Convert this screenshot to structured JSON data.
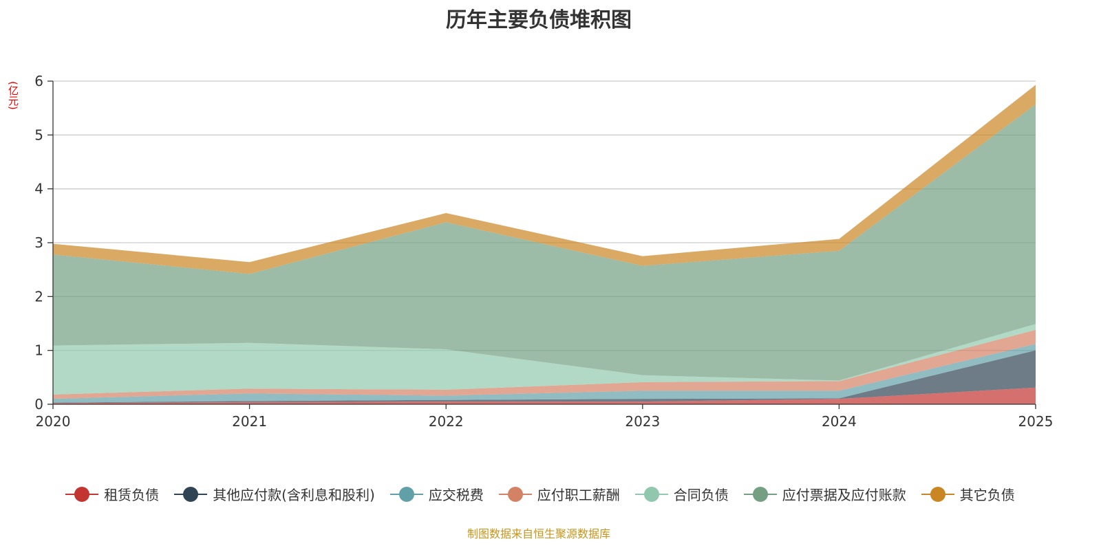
{
  "chart_data": {
    "type": "area",
    "stacked": true,
    "title": "历年主要负债堆积图",
    "ylabel": "(亿元)",
    "xlabel": "",
    "categories": [
      "2020",
      "2021",
      "2022",
      "2023",
      "2024",
      "2025"
    ],
    "ylim": [
      0,
      6
    ],
    "yticks": [
      0,
      1,
      2,
      3,
      4,
      5,
      6
    ],
    "grid": true,
    "legend_position": "bottom",
    "series": [
      {
        "name": "租赁负债",
        "color": "#c23531",
        "values": [
          0.02,
          0.04,
          0.05,
          0.05,
          0.1,
          0.31
        ]
      },
      {
        "name": "其他应付款(含利息和股利)",
        "color": "#2f4554",
        "values": [
          0.01,
          0.02,
          0.03,
          0.05,
          0.01,
          0.69
        ]
      },
      {
        "name": "应交税费",
        "color": "#61a0a8",
        "values": [
          0.07,
          0.14,
          0.08,
          0.15,
          0.14,
          0.12
        ]
      },
      {
        "name": "应付职工薪酬",
        "color": "#d48265",
        "values": [
          0.08,
          0.09,
          0.11,
          0.16,
          0.18,
          0.26
        ]
      },
      {
        "name": "合同负债",
        "color": "#91c7ae",
        "values": [
          0.91,
          0.85,
          0.75,
          0.13,
          0.01,
          0.11
        ]
      },
      {
        "name": "应付票据及应付账款",
        "color": "#749f83",
        "values": [
          1.69,
          1.28,
          2.36,
          2.03,
          2.41,
          4.08
        ]
      },
      {
        "name": "其它负债",
        "color": "#ca8622",
        "values": [
          0.2,
          0.22,
          0.17,
          0.18,
          0.22,
          0.36
        ]
      }
    ]
  },
  "footer": "制图数据来自恒生聚源数据库"
}
